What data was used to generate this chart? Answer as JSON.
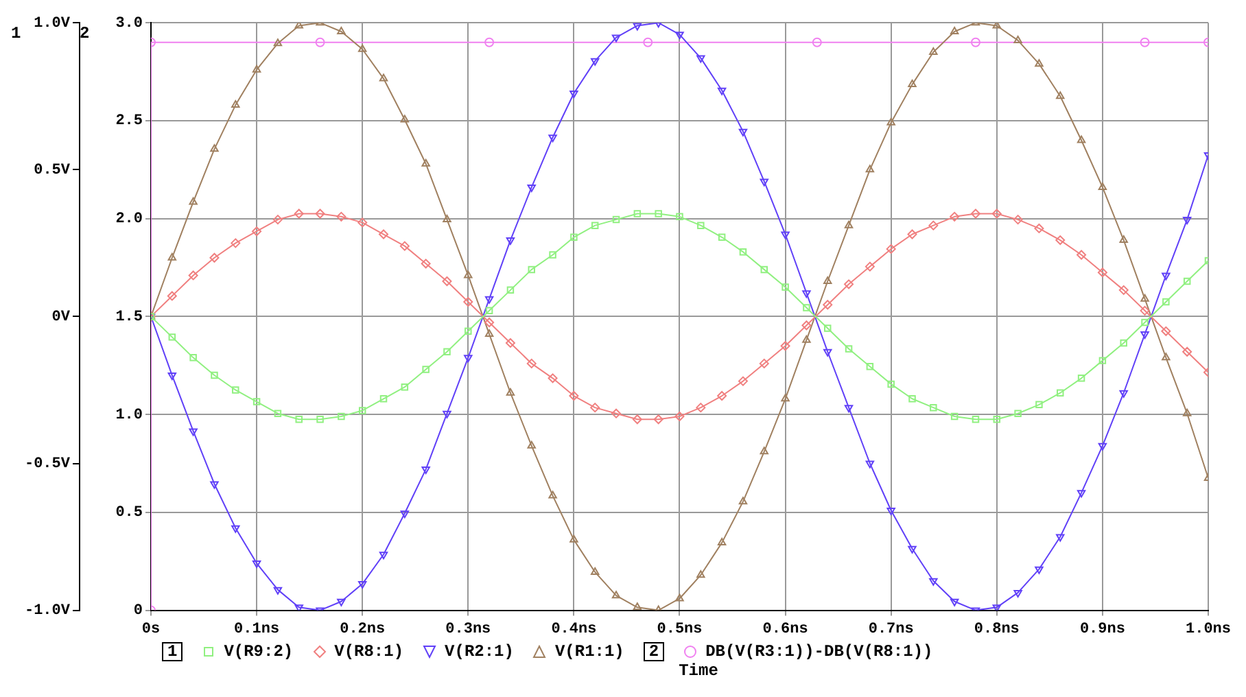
{
  "chart_data": {
    "type": "line",
    "xlabel": "Time",
    "x": [
      0,
      0.02,
      0.04,
      0.06,
      0.08,
      0.1,
      0.12,
      0.14,
      0.16,
      0.18,
      0.2,
      0.22,
      0.24,
      0.26,
      0.28,
      0.3,
      0.32,
      0.34,
      0.36,
      0.38,
      0.4,
      0.42,
      0.44,
      0.46,
      0.48,
      0.5,
      0.52,
      0.54,
      0.56,
      0.58,
      0.6,
      0.62,
      0.64,
      0.66,
      0.68,
      0.7,
      0.72,
      0.74,
      0.76,
      0.78,
      0.8,
      0.82,
      0.84,
      0.86,
      0.88,
      0.9,
      0.92,
      0.94,
      0.96,
      0.98,
      1.0
    ],
    "series": [
      {
        "name": "V(R9:2)",
        "color": "#90f080",
        "marker": "square",
        "axis": "y",
        "values": [
          0,
          -0.07,
          -0.14,
          -0.2,
          -0.25,
          -0.29,
          -0.33,
          -0.35,
          -0.35,
          -0.34,
          -0.32,
          -0.28,
          -0.24,
          -0.18,
          -0.12,
          -0.05,
          0.02,
          0.09,
          0.16,
          0.21,
          0.27,
          0.31,
          0.33,
          0.35,
          0.35,
          0.34,
          0.31,
          0.27,
          0.22,
          0.16,
          0.1,
          0.03,
          -0.04,
          -0.11,
          -0.17,
          -0.23,
          -0.28,
          -0.31,
          -0.34,
          -0.35,
          -0.35,
          -0.33,
          -0.3,
          -0.26,
          -0.21,
          -0.15,
          -0.09,
          -0.02,
          0.05,
          0.12,
          0.19
        ]
      },
      {
        "name": "V(R8:1)",
        "color": "#f08080",
        "marker": "diamond",
        "axis": "y",
        "values": [
          0,
          0.07,
          0.14,
          0.2,
          0.25,
          0.29,
          0.33,
          0.35,
          0.35,
          0.34,
          0.32,
          0.28,
          0.24,
          0.18,
          0.12,
          0.05,
          -0.02,
          -0.09,
          -0.16,
          -0.21,
          -0.27,
          -0.31,
          -0.33,
          -0.35,
          -0.35,
          -0.34,
          -0.31,
          -0.27,
          -0.22,
          -0.16,
          -0.1,
          -0.03,
          0.04,
          0.11,
          0.17,
          0.23,
          0.28,
          0.31,
          0.34,
          0.35,
          0.35,
          0.33,
          0.3,
          0.26,
          0.21,
          0.15,
          0.09,
          0.02,
          -0.05,
          -0.12,
          -0.19
        ]
      },
      {
        "name": "V(R2:1)",
        "color": "#6040f8",
        "marker": "triangle_down",
        "axis": "y",
        "values": [
          0,
          -0.2,
          -0.39,
          -0.57,
          -0.72,
          -0.84,
          -0.93,
          -0.99,
          -1,
          -0.97,
          -0.91,
          -0.81,
          -0.67,
          -0.52,
          -0.33,
          -0.14,
          0.06,
          0.26,
          0.44,
          0.61,
          0.76,
          0.87,
          0.95,
          0.99,
          1,
          0.96,
          0.88,
          0.77,
          0.63,
          0.46,
          0.28,
          0.08,
          -0.12,
          -0.31,
          -0.5,
          -0.66,
          -0.79,
          -0.9,
          -0.97,
          -1,
          -0.99,
          -0.94,
          -0.86,
          -0.75,
          -0.6,
          -0.44,
          -0.26,
          -0.06,
          0.14,
          0.33,
          0.55
        ]
      },
      {
        "name": "V(R1:1)",
        "color": "#a08060",
        "marker": "triangle",
        "axis": "y",
        "values": [
          0,
          0.2,
          0.39,
          0.57,
          0.72,
          0.84,
          0.93,
          0.99,
          1,
          0.97,
          0.91,
          0.81,
          0.67,
          0.52,
          0.33,
          0.14,
          -0.06,
          -0.26,
          -0.44,
          -0.61,
          -0.76,
          -0.87,
          -0.95,
          -0.99,
          -1,
          -0.96,
          -0.88,
          -0.77,
          -0.63,
          -0.46,
          -0.28,
          -0.08,
          0.12,
          0.31,
          0.5,
          0.66,
          0.79,
          0.9,
          0.97,
          1,
          0.99,
          0.94,
          0.86,
          0.75,
          0.6,
          0.44,
          0.26,
          0.06,
          -0.14,
          -0.33,
          -0.55
        ]
      },
      {
        "name": "DB(V(R3:1))-DB(V(R8:1))",
        "color": "#f080f0",
        "marker": "circle",
        "axis": "y2",
        "x": [
          0,
          0,
          0.16,
          0.32,
          0.47,
          0.63,
          0.78,
          0.94,
          1.0
        ],
        "values": [
          0,
          2.9,
          2.9,
          2.9,
          2.9,
          2.9,
          2.9,
          2.9,
          2.9
        ]
      }
    ],
    "xlim": [
      0,
      1.0
    ],
    "xticks": [
      {
        "value": 0,
        "label": "0s"
      },
      {
        "value": 0.1,
        "label": "0.1ns"
      },
      {
        "value": 0.2,
        "label": "0.2ns"
      },
      {
        "value": 0.3,
        "label": "0.3ns"
      },
      {
        "value": 0.4,
        "label": "0.4ns"
      },
      {
        "value": 0.5,
        "label": "0.5ns"
      },
      {
        "value": 0.6,
        "label": "0.6ns"
      },
      {
        "value": 0.7,
        "label": "0.7ns"
      },
      {
        "value": 0.8,
        "label": "0.8ns"
      },
      {
        "value": 0.9,
        "label": "0.9ns"
      },
      {
        "value": 1.0,
        "label": "1.0ns"
      }
    ],
    "ylim": [
      -1.0,
      1.0
    ],
    "yticks": [
      {
        "value": -1.0,
        "label": "-1.0V"
      },
      {
        "value": -0.5,
        "label": "-0.5V"
      },
      {
        "value": 0,
        "label": "0V"
      },
      {
        "value": 0.5,
        "label": "0.5V"
      },
      {
        "value": 1.0,
        "label": "1.0V"
      }
    ],
    "y2lim": [
      0,
      3.0
    ],
    "y2ticks": [
      0,
      0.5,
      {
        "value": 1.0,
        "label": "1.0"
      },
      1.5,
      {
        "value": 2.0,
        "label": "2.0"
      },
      2.5,
      {
        "value": 3.0,
        "label": "3.0"
      }
    ],
    "annotations": [
      "1",
      "2",
      "1",
      "2"
    ],
    "grid": true,
    "legend": "bottom",
    "line_style": "solid"
  }
}
